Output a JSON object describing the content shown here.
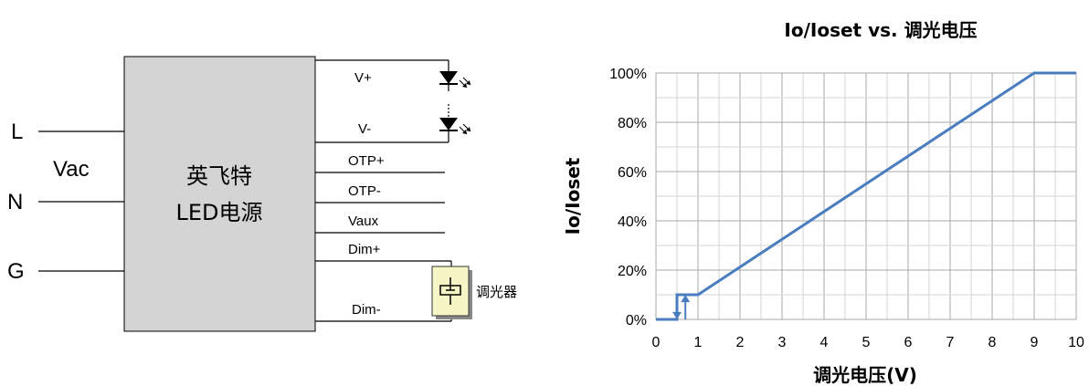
{
  "diagram": {
    "inputs": {
      "l": "L",
      "n": "N",
      "g": "G",
      "vac": "Vac"
    },
    "power_supply": {
      "line1": "英飞特",
      "line2": "LED电源"
    },
    "outputs": {
      "v_plus": "V+",
      "v_minus": "V-",
      "otp_plus": "OTP+",
      "otp_minus": "OTP-",
      "vaux": "Vaux",
      "dim_plus": "Dim+",
      "dim_minus": "Dim-"
    },
    "dimmer": "调光器",
    "colors": {
      "box_fill": "#d4d4d4",
      "dimmer_fill": "#f5f5c6"
    }
  },
  "chart_data": {
    "type": "line",
    "title": "Io/Ioset vs. 调光电压",
    "xlabel": "调光电压(V)",
    "ylabel": "Io/Ioset",
    "xlim": [
      0,
      10
    ],
    "ylim": [
      0,
      100
    ],
    "x_ticks": [
      "0",
      "1",
      "2",
      "3",
      "4",
      "5",
      "6",
      "7",
      "8",
      "9",
      "10"
    ],
    "y_ticks": [
      "0%",
      "20%",
      "40%",
      "60%",
      "80%",
      "100%"
    ],
    "grid": true,
    "line_color": "#4a7dbf",
    "series": [
      {
        "name": "",
        "points": [
          [
            0,
            0
          ],
          [
            0.5,
            0
          ],
          [
            0.5,
            10
          ],
          [
            1,
            10
          ],
          [
            9,
            100
          ],
          [
            10,
            100
          ]
        ]
      },
      {
        "name": "",
        "points": [
          [
            0.7,
            0
          ],
          [
            0.7,
            10
          ]
        ]
      }
    ]
  }
}
